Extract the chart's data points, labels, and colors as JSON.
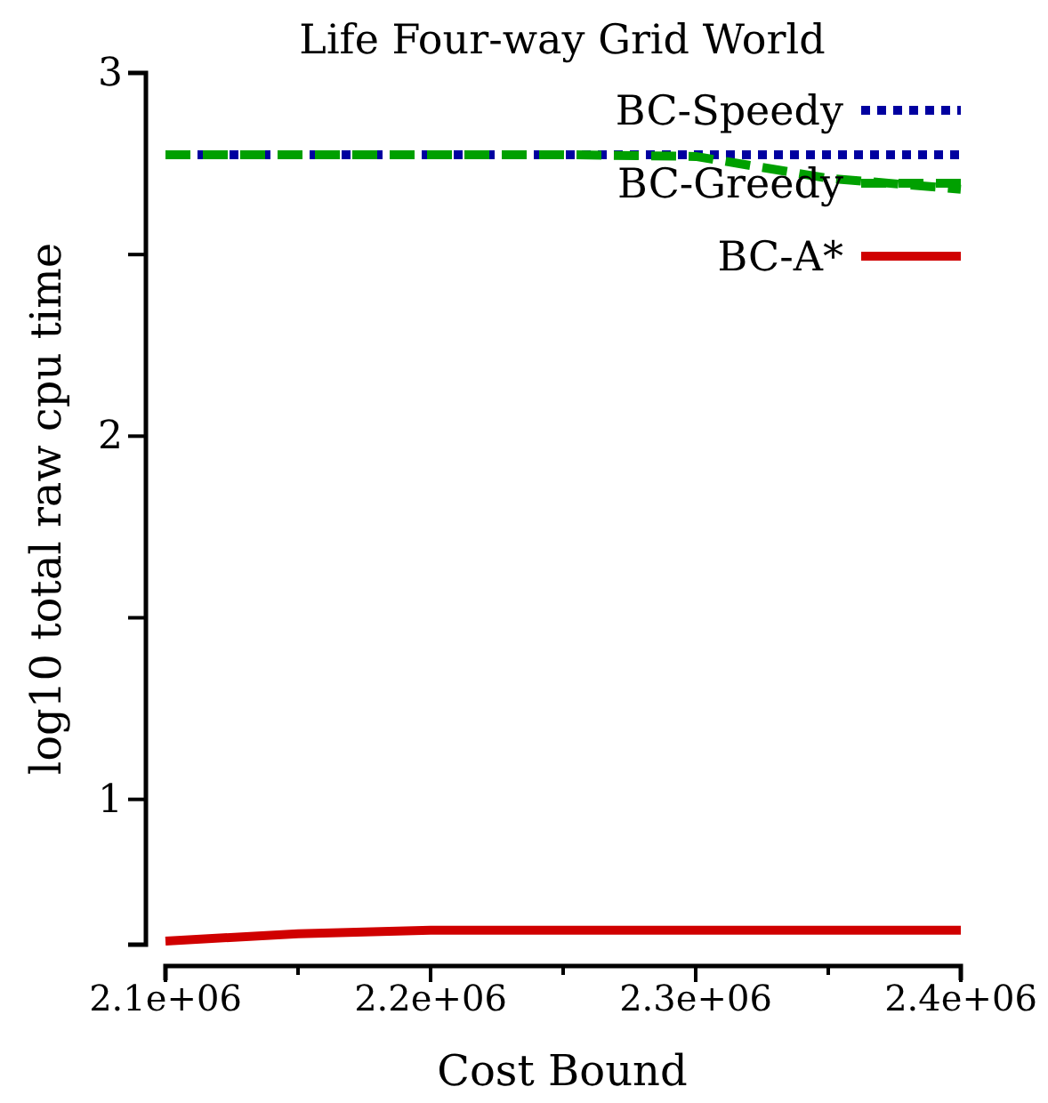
{
  "chart_data": {
    "type": "line",
    "title": "Life Four-way Grid World",
    "xlabel": "Cost Bound",
    "ylabel": "log10 total raw cpu time",
    "x": [
      2100000,
      2150000,
      2200000,
      2250000,
      2300000,
      2350000,
      2400000
    ],
    "series": [
      {
        "name": "BC-Speedy",
        "color": "#0000a0",
        "line_style": "dotted",
        "values": [
          2.775,
          2.775,
          2.775,
          2.775,
          2.775,
          2.775,
          2.775
        ]
      },
      {
        "name": "BC-Greedy",
        "color": "#00a000",
        "line_style": "dashed",
        "values": [
          2.775,
          2.775,
          2.775,
          2.775,
          2.77,
          2.71,
          2.68
        ]
      },
      {
        "name": "BC-A*",
        "color": "#d00000",
        "line_style": "solid",
        "values": [
          0.61,
          0.63,
          0.64,
          0.64,
          0.64,
          0.64,
          0.64
        ]
      }
    ],
    "xlim": [
      2100000,
      2400000
    ],
    "xticks": [
      {
        "value": 2100000,
        "label": "2.1e+06"
      },
      {
        "value": 2150000,
        "label": null
      },
      {
        "value": 2200000,
        "label": "2.2e+06"
      },
      {
        "value": 2250000,
        "label": null
      },
      {
        "value": 2300000,
        "label": "2.3e+06"
      },
      {
        "value": 2350000,
        "label": null
      },
      {
        "value": 2400000,
        "label": "2.4e+06"
      }
    ],
    "ylim": [
      0.6,
      3
    ],
    "yticks": [
      1,
      {
        "value": 1.5,
        "label": null
      },
      2,
      {
        "value": 2.5,
        "label": null
      },
      3
    ],
    "grid": false,
    "legend": "top right",
    "marker": "none"
  }
}
